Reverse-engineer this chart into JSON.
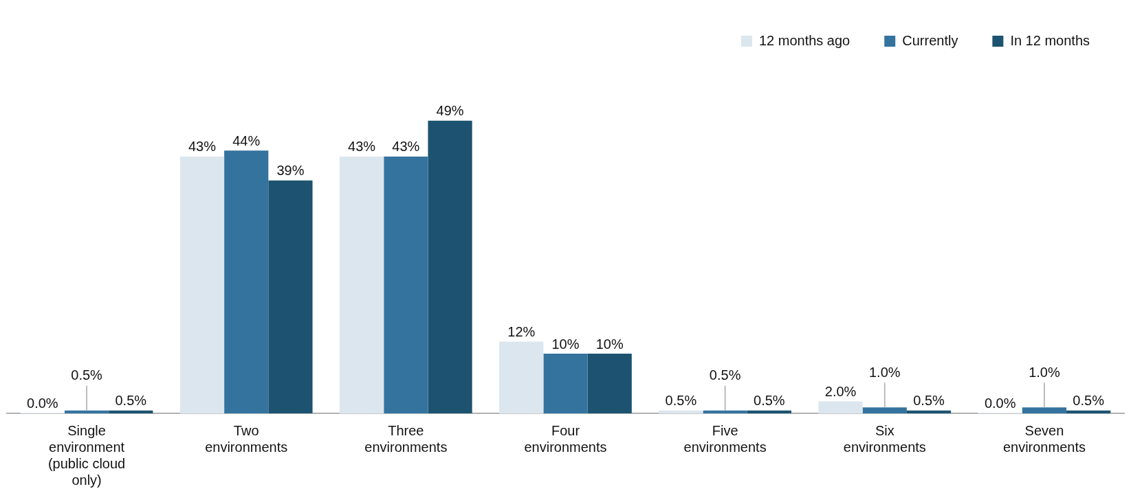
{
  "chart_data": {
    "type": "bar",
    "categories": [
      "Single environment (public cloud only)",
      "Two environments",
      "Three environments",
      "Four environments",
      "Five environments",
      "Six environments",
      "Seven environments"
    ],
    "series": [
      {
        "name": "12 months ago",
        "color": "#dce6ee",
        "values": [
          0.0,
          43,
          43,
          12,
          0.5,
          2.0,
          0.0
        ],
        "value_labels": [
          "0.0%",
          "43%",
          "43%",
          "12%",
          "0.5%",
          "2.0%",
          "0.0%"
        ]
      },
      {
        "name": "Currently",
        "color": "#35739f",
        "values": [
          0.5,
          44,
          43,
          10,
          0.5,
          1.0,
          1.0
        ],
        "value_labels": [
          "0.5%",
          "44%",
          "43%",
          "10%",
          "0.5%",
          "1.0%",
          "1.0%"
        ]
      },
      {
        "name": "In 12 months",
        "color": "#1d5370",
        "values": [
          0.5,
          39,
          49,
          10,
          0.5,
          0.5,
          0.5
        ],
        "value_labels": [
          "0.5%",
          "39%",
          "49%",
          "10%",
          "0.5%",
          "0.5%",
          "0.5%"
        ]
      }
    ],
    "legend": "top right",
    "grid": false
  }
}
